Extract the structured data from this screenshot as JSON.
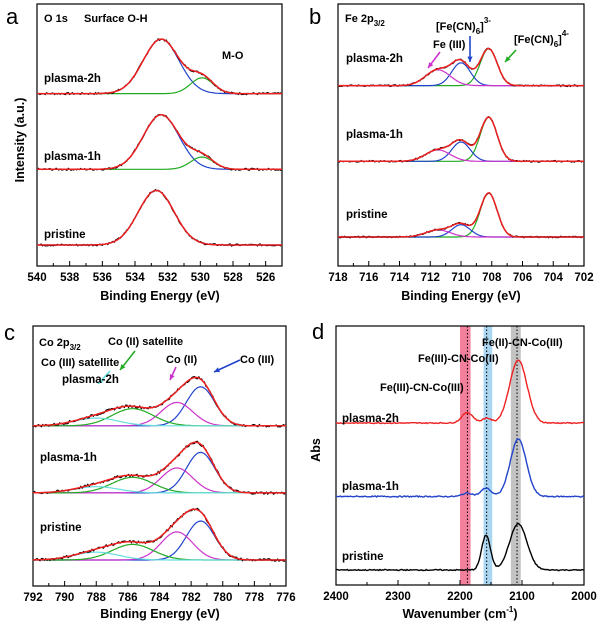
{
  "chart_data": [
    {
      "panel": "a",
      "type": "line",
      "title": "O 1s",
      "xlabel": "Binding Energy (eV)",
      "ylabel": "Intensity (a.u.)",
      "xlim": [
        540,
        525
      ],
      "xticks": [
        540,
        538,
        536,
        534,
        532,
        530,
        528,
        526
      ],
      "xtick_labels": [
        "540",
        "538",
        "536",
        "534",
        "532",
        "530",
        "528",
        "526"
      ],
      "samples": [
        "plasma-2h",
        "plasma-1h",
        "pristine"
      ],
      "annotations": [
        "Surface O-H",
        "M-O"
      ],
      "components": [
        {
          "name": "Surface O-H",
          "color": "#ee1f1f",
          "center": 532.4,
          "sigma": 1.1
        },
        {
          "name": "M-O",
          "color": "#2244cc",
          "center": 529.9,
          "sigma": 0.7
        }
      ],
      "series": [
        {
          "name": "plasma-2h",
          "baseline": 1.72,
          "peaks": [
            {
              "center": 532.4,
              "height": 0.62,
              "sigma": 1.1
            },
            {
              "center": 529.9,
              "height": 0.18,
              "sigma": 0.7
            }
          ]
        },
        {
          "name": "plasma-1h",
          "baseline": 0.86,
          "peaks": [
            {
              "center": 532.4,
              "height": 0.62,
              "sigma": 1.1
            },
            {
              "center": 529.9,
              "height": 0.14,
              "sigma": 0.7
            }
          ]
        },
        {
          "name": "pristine",
          "baseline": 0.0,
          "peaks": [
            {
              "center": 532.7,
              "height": 0.62,
              "sigma": 1.1
            }
          ]
        }
      ]
    },
    {
      "panel": "b",
      "type": "line",
      "title": "Fe 2p3/2",
      "title_main": "Fe 2p",
      "title_sub": "3/2",
      "xlabel": "Binding Energy (eV)",
      "xlim": [
        718,
        702
      ],
      "xticks": [
        718,
        716,
        714,
        712,
        710,
        708,
        706,
        704,
        702
      ],
      "xtick_labels": [
        "718",
        "716",
        "714",
        "712",
        "710",
        "708",
        "706",
        "704",
        "702"
      ],
      "samples": [
        "plasma-2h",
        "plasma-1h",
        "pristine"
      ],
      "annotations": [
        "Fe (III)",
        "[Fe(CN)6]3-",
        "[Fe(CN)6]4-"
      ],
      "components": [
        {
          "name": "[Fe(CN)6]4-",
          "color": "#22aa22",
          "center": 708.2,
          "sigma": 0.55
        },
        {
          "name": "[Fe(CN)6]3-",
          "color": "#2244cc",
          "center": 710.0,
          "sigma": 0.6
        },
        {
          "name": "Fe (III)",
          "color": "#cc33cc",
          "center": 711.5,
          "sigma": 0.8
        }
      ],
      "series": [
        {
          "name": "plasma-2h",
          "baseline": 1.72,
          "peaks": [
            {
              "center": 708.2,
              "height": 0.42,
              "sigma": 0.55
            },
            {
              "center": 710.0,
              "height": 0.26,
              "sigma": 0.6
            },
            {
              "center": 711.5,
              "height": 0.18,
              "sigma": 0.8
            }
          ]
        },
        {
          "name": "plasma-1h",
          "baseline": 0.86,
          "peaks": [
            {
              "center": 708.2,
              "height": 0.5,
              "sigma": 0.55
            },
            {
              "center": 710.0,
              "height": 0.22,
              "sigma": 0.6
            },
            {
              "center": 711.5,
              "height": 0.13,
              "sigma": 0.8
            }
          ]
        },
        {
          "name": "pristine",
          "baseline": 0.0,
          "peaks": [
            {
              "center": 708.2,
              "height": 0.5,
              "sigma": 0.55
            },
            {
              "center": 710.0,
              "height": 0.14,
              "sigma": 0.6
            },
            {
              "center": 711.5,
              "height": 0.08,
              "sigma": 0.8
            }
          ]
        }
      ]
    },
    {
      "panel": "c",
      "type": "line",
      "title": "Co 2p3/2",
      "title_main": "Co 2p",
      "title_sub": "3/2",
      "xlabel": "Binding Energy (eV)",
      "xlim": [
        792,
        776
      ],
      "xticks": [
        792,
        790,
        788,
        786,
        784,
        782,
        780,
        778,
        776
      ],
      "xtick_labels": [
        "792",
        "790",
        "788",
        "786",
        "784",
        "782",
        "780",
        "778",
        "776"
      ],
      "samples": [
        "plasma-2h",
        "plasma-1h",
        "pristine"
      ],
      "annotations": [
        "Co (II) satellite",
        "Co (III) satellite",
        "Co (II)",
        "Co (III)"
      ],
      "components": [
        {
          "name": "Co (III)",
          "color": "#2244cc",
          "center": 781.4,
          "sigma": 0.9
        },
        {
          "name": "Co (II)",
          "color": "#cc33cc",
          "center": 782.9,
          "sigma": 1.0
        },
        {
          "name": "Co (II) satellite",
          "color": "#22aa22",
          "center": 785.7,
          "sigma": 1.3
        },
        {
          "name": "Co (III) satellite",
          "color": "#66dddd",
          "center": 788.0,
          "sigma": 1.4
        }
      ],
      "series": [
        {
          "name": "plasma-2h",
          "baseline": 1.72,
          "peaks": [
            {
              "center": 781.4,
              "height": 0.5,
              "sigma": 0.9
            },
            {
              "center": 782.9,
              "height": 0.3,
              "sigma": 1.0
            },
            {
              "center": 785.7,
              "height": 0.22,
              "sigma": 1.3
            },
            {
              "center": 788.0,
              "height": 0.1,
              "sigma": 1.4
            }
          ]
        },
        {
          "name": "plasma-1h",
          "baseline": 0.86,
          "peaks": [
            {
              "center": 781.4,
              "height": 0.52,
              "sigma": 0.9
            },
            {
              "center": 782.9,
              "height": 0.32,
              "sigma": 1.0
            },
            {
              "center": 785.7,
              "height": 0.2,
              "sigma": 1.3
            },
            {
              "center": 788.0,
              "height": 0.08,
              "sigma": 1.4
            }
          ]
        },
        {
          "name": "pristine",
          "baseline": 0.0,
          "peaks": [
            {
              "center": 781.4,
              "height": 0.5,
              "sigma": 0.9
            },
            {
              "center": 782.9,
              "height": 0.36,
              "sigma": 1.0
            },
            {
              "center": 785.7,
              "height": 0.2,
              "sigma": 1.3
            },
            {
              "center": 788.0,
              "height": 0.1,
              "sigma": 1.4
            }
          ]
        }
      ]
    },
    {
      "panel": "d",
      "type": "line",
      "xlabel": "Wavenumber (cm-1)",
      "xlabel_main": "Wavenumber (cm",
      "xlabel_sup": "-1",
      "xlabel_end": ")",
      "ylabel": "Abs",
      "xlim": [
        2400,
        2000
      ],
      "xticks": [
        2400,
        2300,
        2200,
        2100,
        2000
      ],
      "xtick_labels": [
        "2400",
        "2300",
        "2200",
        "2100",
        "2000"
      ],
      "samples": [
        "plasma-2h",
        "plasma-1h",
        "pristine"
      ],
      "annotations": [
        "Fe(II)-CN-Co(III)",
        "Fe(III)-CN-Co(II)",
        "Fe(III)-CN-Co(III)"
      ],
      "bands": [
        {
          "name": "Fe(III)-CN-Co(III)",
          "color": "#f06a8c",
          "range": [
            2200,
            2183
          ],
          "dotted_at": 2188
        },
        {
          "name": "Fe(III)-CN-Co(II)",
          "color": "#9ccff0",
          "range": [
            2162,
            2148
          ],
          "dotted_at": 2157
        },
        {
          "name": "Fe(II)-CN-Co(III)",
          "color": "#b8b8b8",
          "range": [
            2118,
            2102
          ],
          "dotted_at": 2108
        }
      ],
      "series": [
        {
          "name": "plasma-2h",
          "color": "#ee2222",
          "baseline": 2.1,
          "peaks": [
            {
              "center": 2106,
              "height": 0.9,
              "sigma": 14
            },
            {
              "center": 2188,
              "height": 0.15,
              "sigma": 9
            },
            {
              "center": 2157,
              "height": 0.07,
              "sigma": 7
            }
          ]
        },
        {
          "name": "plasma-1h",
          "color": "#2244cc",
          "baseline": 1.05,
          "peaks": [
            {
              "center": 2106,
              "height": 0.82,
              "sigma": 13
            },
            {
              "center": 2158,
              "height": 0.12,
              "sigma": 8
            },
            {
              "center": 2188,
              "height": 0.05,
              "sigma": 8
            }
          ]
        },
        {
          "name": "pristine",
          "color": "#000000",
          "baseline": 0.0,
          "peaks": [
            {
              "center": 2106,
              "height": 0.66,
              "sigma": 14
            },
            {
              "center": 2158,
              "height": 0.5,
              "sigma": 7
            }
          ]
        }
      ]
    }
  ]
}
